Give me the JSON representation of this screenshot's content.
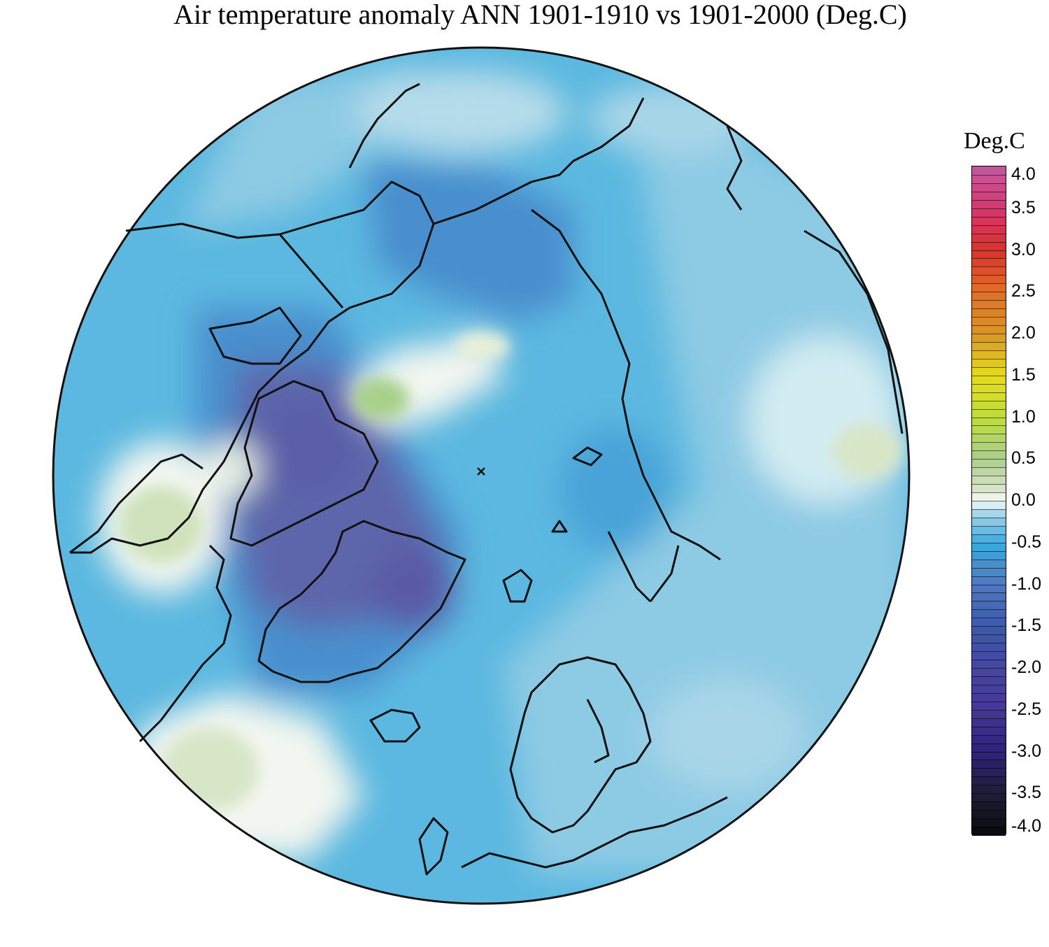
{
  "title": "Air temperature anomaly ANN 1901-1910 vs 1901-2000 (Deg.C)",
  "legend": {
    "title": "Deg.C",
    "ticks": [
      "4.0",
      "3.5",
      "3.0",
      "2.5",
      "2.0",
      "1.5",
      "1.0",
      "0.5",
      "0.0",
      "-0.5",
      "-1.0",
      "-1.5",
      "-2.0",
      "-2.5",
      "-3.0",
      "-3.5",
      "-4.0"
    ],
    "range": [
      -4.0,
      4.0
    ],
    "step": 0.1
  },
  "colors": {
    "background_anomaly": "#5cb8e0",
    "ocean_light": "#8dcae4",
    "warm_pale": "#d8e6c8",
    "warm_green": "#a9d08a",
    "cold_mid": "#4a8fce",
    "cold_dark": "#5d66aa",
    "coastline": "#111111"
  },
  "map": {
    "projection": "north-polar-stereographic",
    "variable": "annual air temperature anomaly"
  }
}
